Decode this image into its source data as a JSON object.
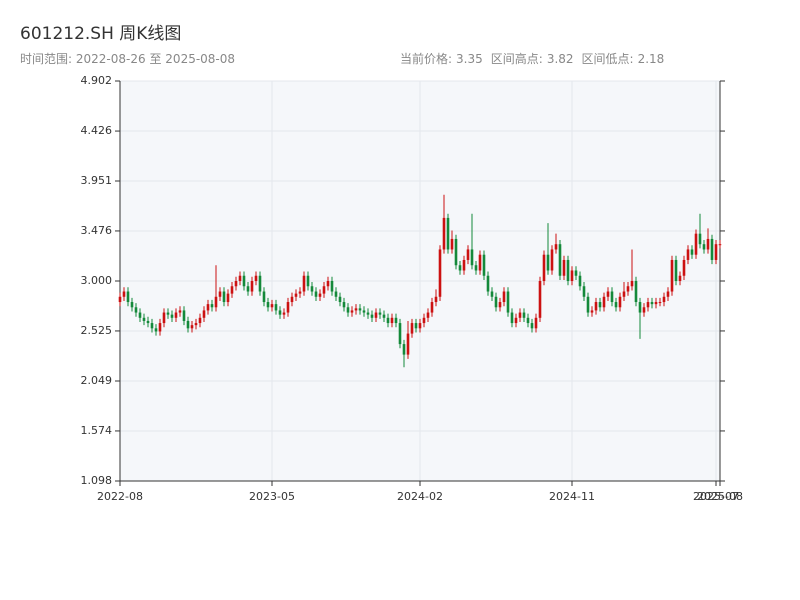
{
  "chart_data": {
    "type": "candlestick",
    "title": "601212.SH 周K线图",
    "range_label": "时间范围:",
    "range_start": "2022-08-26",
    "range_sep": "至",
    "range_end": "2025-08-08",
    "stats": [
      {
        "label": "当前价格:",
        "value": 3.35
      },
      {
        "label": "区间高点:",
        "value": 3.82
      },
      {
        "label": "区间低点:",
        "value": 2.18
      }
    ],
    "up_color": "#cc1111",
    "down_color": "#14893a",
    "grid": true,
    "xlim": [
      0,
      150
    ],
    "xticks": [
      {
        "value": 0,
        "label": "2022-08"
      },
      {
        "value": 38,
        "label": "2023-05"
      },
      {
        "value": 75,
        "label": "2024-02"
      },
      {
        "value": 113,
        "label": "2024-11"
      },
      {
        "value": 149,
        "label": "2025-07"
      },
      {
        "value": 150,
        "label": "2025-08"
      }
    ],
    "ylim": [
      1.098,
      4.902
    ],
    "yticks": [
      1.098,
      1.574,
      2.049,
      2.525,
      {
        "value": 3,
        "label": "3.000"
      },
      3.476,
      3.951,
      4.426,
      4.902
    ],
    "open": [
      2.8,
      2.85,
      2.9,
      2.8,
      2.75,
      2.7,
      2.65,
      2.62,
      2.6,
      2.55,
      2.52,
      2.6,
      2.7,
      2.68,
      2.65,
      2.7,
      2.72,
      2.62,
      2.55,
      2.58,
      2.6,
      2.65,
      2.72,
      2.78,
      2.75,
      2.85,
      2.9,
      2.8,
      2.88,
      2.95,
      3.0,
      3.05,
      2.95,
      2.9,
      3.0,
      3.05,
      2.9,
      2.8,
      2.75,
      2.78,
      2.72,
      2.68,
      2.7,
      2.8,
      2.85,
      2.88,
      2.9,
      3.05,
      2.95,
      2.9,
      2.85,
      2.88,
      2.95,
      3.0,
      2.9,
      2.85,
      2.8,
      2.75,
      2.7,
      2.72,
      2.74,
      2.72,
      2.7,
      2.68,
      2.65,
      2.7,
      2.68,
      2.65,
      2.6,
      2.65,
      2.6,
      2.4,
      2.3,
      2.5,
      2.6,
      2.55,
      2.6,
      2.65,
      2.7,
      2.8,
      2.85,
      3.3,
      3.6,
      3.3,
      3.4,
      3.15,
      3.1,
      3.2,
      3.3,
      3.15,
      3.1,
      3.25,
      3.05,
      2.9,
      2.85,
      2.75,
      2.8,
      2.9,
      2.7,
      2.6,
      2.65,
      2.7,
      2.65,
      2.6,
      2.55,
      2.65,
      3.0,
      3.25,
      3.1,
      3.3,
      3.35,
      3.05,
      3.2,
      3.0,
      3.1,
      3.05,
      2.95,
      2.85,
      2.7,
      2.72,
      2.8,
      2.75,
      2.85,
      2.9,
      2.8,
      2.75,
      2.85,
      2.9,
      2.95,
      3.0,
      2.8,
      2.7,
      2.75,
      2.8,
      2.78,
      2.8,
      2.8,
      2.85,
      2.9,
      3.2,
      3.0,
      3.05,
      3.2,
      3.3,
      3.25,
      3.45,
      3.35,
      3.3,
      3.4,
      3.2,
      3.35
    ],
    "high": [
      2.89,
      2.94,
      2.94,
      2.84,
      2.79,
      2.74,
      2.69,
      2.66,
      2.64,
      2.59,
      2.64,
      2.74,
      2.74,
      2.72,
      2.74,
      2.76,
      2.76,
      2.66,
      2.62,
      2.64,
      2.69,
      2.76,
      2.82,
      2.82,
      3.15,
      2.94,
      2.94,
      2.92,
      2.99,
      3.04,
      3.09,
      3.09,
      2.99,
      3.04,
      3.09,
      3.09,
      2.94,
      2.84,
      2.82,
      2.82,
      2.76,
      2.74,
      2.84,
      2.89,
      2.92,
      2.94,
      3.09,
      3.09,
      2.99,
      2.94,
      2.92,
      2.99,
      3.04,
      3.04,
      2.94,
      2.89,
      2.84,
      2.79,
      2.76,
      2.78,
      2.78,
      2.76,
      2.74,
      2.72,
      2.74,
      2.74,
      2.72,
      2.69,
      2.69,
      2.69,
      2.64,
      2.44,
      2.62,
      2.64,
      2.64,
      2.64,
      2.69,
      2.74,
      2.84,
      2.92,
      3.34,
      3.82,
      3.64,
      3.48,
      3.44,
      3.19,
      3.24,
      3.34,
      3.64,
      3.19,
      3.29,
      3.29,
      3.09,
      2.94,
      2.89,
      2.84,
      2.94,
      2.94,
      2.74,
      2.69,
      2.74,
      2.74,
      2.69,
      2.64,
      2.69,
      3.04,
      3.29,
      3.55,
      3.34,
      3.45,
      3.39,
      3.24,
      3.24,
      3.14,
      3.14,
      3.09,
      2.99,
      2.89,
      2.76,
      2.84,
      2.84,
      2.89,
      2.94,
      2.94,
      2.84,
      2.89,
      2.99,
      2.99,
      3.3,
      3.04,
      2.84,
      2.79,
      2.84,
      2.84,
      2.84,
      2.84,
      2.89,
      2.94,
      3.24,
      3.24,
      3.09,
      3.24,
      3.34,
      3.34,
      3.49,
      3.64,
      3.39,
      3.5,
      3.44,
      3.39,
      3.39
    ],
    "low": [
      2.76,
      2.81,
      2.76,
      2.71,
      2.66,
      2.61,
      2.58,
      2.56,
      2.51,
      2.48,
      2.48,
      2.56,
      2.64,
      2.61,
      2.61,
      2.66,
      2.58,
      2.51,
      2.51,
      2.54,
      2.56,
      2.61,
      2.68,
      2.71,
      2.71,
      2.81,
      2.76,
      2.76,
      2.84,
      2.91,
      2.96,
      2.91,
      2.86,
      2.86,
      2.96,
      2.86,
      2.76,
      2.71,
      2.71,
      2.68,
      2.64,
      2.64,
      2.66,
      2.76,
      2.81,
      2.84,
      2.86,
      2.91,
      2.86,
      2.81,
      2.81,
      2.84,
      2.91,
      2.86,
      2.81,
      2.76,
      2.71,
      2.66,
      2.66,
      2.68,
      2.68,
      2.66,
      2.64,
      2.61,
      2.61,
      2.64,
      2.61,
      2.56,
      2.56,
      2.56,
      2.36,
      2.18,
      2.26,
      2.46,
      2.51,
      2.51,
      2.56,
      2.61,
      2.66,
      2.76,
      2.81,
      3.26,
      3.26,
      3.26,
      3.11,
      3.06,
      3.06,
      3.16,
      3.11,
      3.06,
      3.06,
      3.01,
      2.86,
      2.81,
      2.71,
      2.71,
      2.76,
      2.66,
      2.56,
      2.56,
      2.61,
      2.61,
      2.56,
      2.51,
      2.51,
      2.61,
      2.96,
      3.06,
      3.06,
      3.26,
      3.01,
      3.01,
      2.96,
      2.96,
      3.01,
      2.91,
      2.81,
      2.66,
      2.66,
      2.68,
      2.71,
      2.71,
      2.81,
      2.76,
      2.71,
      2.71,
      2.81,
      2.86,
      2.91,
      2.76,
      2.45,
      2.66,
      2.71,
      2.74,
      2.74,
      2.76,
      2.76,
      2.81,
      2.86,
      2.96,
      2.96,
      3.01,
      3.16,
      3.21,
      3.21,
      3.31,
      3.26,
      3.26,
      3.16,
      3.16,
      3.31
    ],
    "close": [
      2.85,
      2.9,
      2.8,
      2.75,
      2.7,
      2.65,
      2.62,
      2.6,
      2.55,
      2.52,
      2.6,
      2.7,
      2.68,
      2.65,
      2.7,
      2.72,
      2.62,
      2.55,
      2.58,
      2.6,
      2.65,
      2.72,
      2.78,
      2.75,
      2.85,
      2.9,
      2.8,
      2.88,
      2.95,
      3.0,
      3.05,
      2.95,
      2.9,
      3.0,
      3.05,
      2.9,
      2.8,
      2.75,
      2.78,
      2.72,
      2.68,
      2.7,
      2.8,
      2.85,
      2.88,
      2.9,
      3.05,
      2.95,
      2.9,
      2.85,
      2.88,
      2.95,
      3.0,
      2.9,
      2.85,
      2.8,
      2.75,
      2.7,
      2.72,
      2.74,
      2.72,
      2.7,
      2.68,
      2.65,
      2.7,
      2.68,
      2.65,
      2.6,
      2.65,
      2.6,
      2.4,
      2.3,
      2.5,
      2.6,
      2.55,
      2.6,
      2.65,
      2.7,
      2.8,
      2.85,
      3.3,
      3.6,
      3.3,
      3.4,
      3.15,
      3.1,
      3.2,
      3.3,
      3.15,
      3.1,
      3.25,
      3.05,
      2.9,
      2.85,
      2.75,
      2.8,
      2.9,
      2.7,
      2.6,
      2.65,
      2.7,
      2.65,
      2.6,
      2.55,
      2.65,
      3.0,
      3.25,
      3.1,
      3.3,
      3.35,
      3.05,
      3.2,
      3.0,
      3.1,
      3.05,
      2.95,
      2.85,
      2.7,
      2.72,
      2.8,
      2.75,
      2.85,
      2.9,
      2.8,
      2.75,
      2.85,
      2.9,
      2.95,
      3.0,
      2.8,
      2.7,
      2.75,
      2.8,
      2.78,
      2.8,
      2.8,
      2.85,
      2.9,
      3.2,
      3.0,
      3.05,
      3.2,
      3.3,
      3.25,
      3.45,
      3.35,
      3.3,
      3.4,
      3.2,
      3.35,
      3.35
    ]
  }
}
